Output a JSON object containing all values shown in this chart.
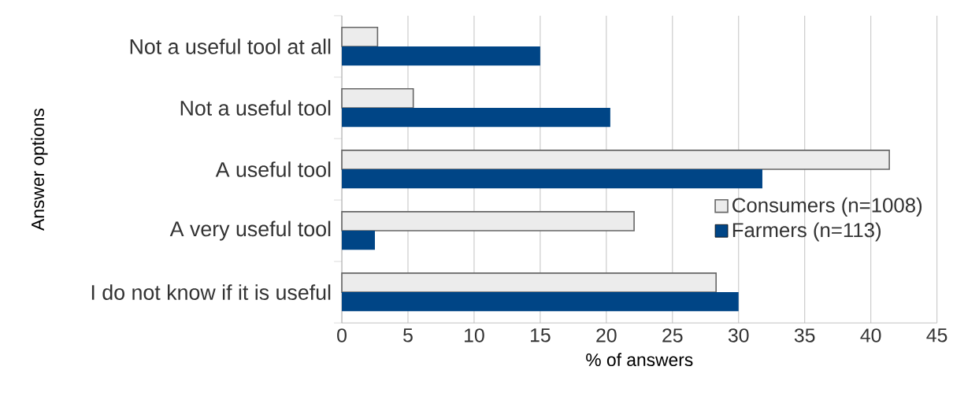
{
  "chart_data": {
    "type": "bar",
    "orientation": "horizontal",
    "xlabel": "% of answers",
    "ylabel": "Answer options",
    "categories": [
      "Not a useful tool at all",
      "Not a useful tool",
      "A useful tool",
      "A very useful tool",
      "I do not know if it is useful"
    ],
    "series": [
      {
        "name": "Consumers (n=1008)",
        "color": "#ececec",
        "values": [
          2.7,
          5.4,
          41.4,
          22.1,
          28.3
        ]
      },
      {
        "name": "Farmers (n=113)",
        "color": "#004586",
        "values": [
          15.0,
          20.3,
          31.8,
          2.5,
          30.0
        ]
      }
    ],
    "xlim": [
      0,
      45
    ],
    "xticks": [
      0,
      5,
      10,
      15,
      20,
      25,
      30,
      35,
      40,
      45
    ],
    "grid": "x",
    "legend": "right"
  }
}
